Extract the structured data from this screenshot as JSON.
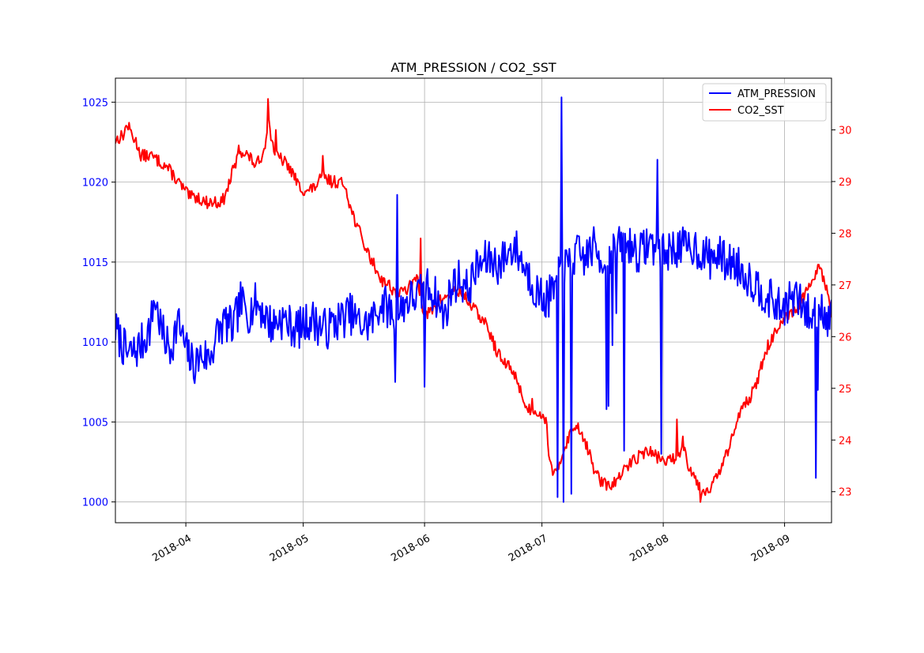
{
  "chart_data": {
    "type": "line",
    "title": "ATM_PRESSION / CO2_SST",
    "xlabel": "",
    "x_ticks": [
      "2018-04",
      "2018-05",
      "2018-06",
      "2018-07",
      "2018-08",
      "2018-09"
    ],
    "x_tick_days": [
      18,
      48,
      79,
      109,
      140,
      171
    ],
    "x_range_days": [
      0,
      183
    ],
    "x_start_date": "2018-03-14",
    "grid": true,
    "legend_position": "upper right",
    "axes": {
      "left": {
        "ylim": [
          998.7,
          1026.5
        ],
        "ticks": [
          1000,
          1005,
          1010,
          1015,
          1020,
          1025
        ],
        "color": "#0000ff"
      },
      "right": {
        "ylim": [
          22.4,
          31.0
        ],
        "ticks": [
          23,
          24,
          25,
          26,
          27,
          28,
          29,
          30
        ],
        "color": "#ff0000"
      }
    },
    "series": [
      {
        "name": "ATM_PRESSION",
        "axis": "left",
        "color": "#0000ff",
        "anchors": [
          [
            0,
            1010.8
          ],
          [
            3,
            1009.2
          ],
          [
            5,
            1009.4
          ],
          [
            7,
            1010.0
          ],
          [
            9,
            1011.0
          ],
          [
            10,
            1012.8
          ],
          [
            12,
            1010.5
          ],
          [
            14,
            1009.5
          ],
          [
            16,
            1011.3
          ],
          [
            18,
            1009.5
          ],
          [
            20,
            1008.5
          ],
          [
            22,
            1009.2
          ],
          [
            24,
            1009.0
          ],
          [
            26,
            1010.5
          ],
          [
            28,
            1011.3
          ],
          [
            30,
            1010.8
          ],
          [
            32,
            1012.5
          ],
          [
            34,
            1011.8
          ],
          [
            36,
            1012.5
          ],
          [
            38,
            1011.8
          ],
          [
            40,
            1011.0
          ],
          [
            42,
            1011.5
          ],
          [
            44,
            1011.2
          ],
          [
            46,
            1010.8
          ],
          [
            48,
            1011.0
          ],
          [
            50,
            1011.5
          ],
          [
            52,
            1011.0
          ],
          [
            54,
            1010.8
          ],
          [
            56,
            1011.2
          ],
          [
            58,
            1011.5
          ],
          [
            60,
            1011.8
          ],
          [
            62,
            1011.2
          ],
          [
            64,
            1011.0
          ],
          [
            66,
            1011.5
          ],
          [
            68,
            1012.5
          ],
          [
            70,
            1012.0
          ],
          [
            72,
            1011.5
          ],
          [
            74,
            1012.5
          ],
          [
            76,
            1012.8
          ],
          [
            78,
            1013.0
          ],
          [
            80,
            1013.5
          ],
          [
            82,
            1012.8
          ],
          [
            84,
            1011.5
          ],
          [
            86,
            1013.5
          ],
          [
            88,
            1014.0
          ],
          [
            90,
            1013.2
          ],
          [
            92,
            1014.5
          ],
          [
            94,
            1015.0
          ],
          [
            96,
            1015.2
          ],
          [
            98,
            1014.8
          ],
          [
            100,
            1015.5
          ],
          [
            102,
            1016.0
          ],
          [
            104,
            1015.0
          ],
          [
            106,
            1014.0
          ],
          [
            108,
            1013.0
          ],
          [
            110,
            1012.6
          ],
          [
            112,
            1013.2
          ],
          [
            114,
            1014.5
          ],
          [
            116,
            1014.8
          ],
          [
            118,
            1015.5
          ],
          [
            120,
            1015.2
          ],
          [
            122,
            1016.0
          ],
          [
            124,
            1015.2
          ],
          [
            126,
            1015.5
          ],
          [
            128,
            1015.8
          ],
          [
            130,
            1016.2
          ],
          [
            132,
            1016.0
          ],
          [
            134,
            1015.5
          ],
          [
            136,
            1016.2
          ],
          [
            138,
            1016.0
          ],
          [
            140,
            1015.5
          ],
          [
            142,
            1015.8
          ],
          [
            144,
            1016.0
          ],
          [
            146,
            1015.8
          ],
          [
            148,
            1016.0
          ],
          [
            150,
            1015.5
          ],
          [
            152,
            1015.2
          ],
          [
            154,
            1015.5
          ],
          [
            156,
            1015.0
          ],
          [
            158,
            1015.0
          ],
          [
            160,
            1014.5
          ],
          [
            162,
            1014.0
          ],
          [
            164,
            1013.5
          ],
          [
            166,
            1013.0
          ],
          [
            168,
            1012.5
          ],
          [
            170,
            1012.0
          ],
          [
            172,
            1012.5
          ],
          [
            174,
            1012.8
          ],
          [
            176,
            1012.0
          ],
          [
            178,
            1011.5
          ],
          [
            180,
            1012.5
          ],
          [
            182,
            1011.5
          ]
        ],
        "spikes": [
          [
            71.5,
            1007.5
          ],
          [
            72,
            1019.2
          ],
          [
            79,
            1007.2
          ],
          [
            113,
            1000.3
          ],
          [
            114,
            1025.3
          ],
          [
            114.5,
            1000.0
          ],
          [
            116.5,
            1000.5
          ],
          [
            125.5,
            1005.8
          ],
          [
            126,
            1006.0
          ],
          [
            127,
            1009.8
          ],
          [
            128,
            1011.8
          ],
          [
            130,
            1003.2
          ],
          [
            138.5,
            1021.4
          ],
          [
            139.5,
            1003.0
          ],
          [
            179,
            1001.5
          ],
          [
            179.5,
            1007.0
          ]
        ]
      },
      {
        "name": "CO2_SST",
        "axis": "right",
        "color": "#ff0000",
        "anchors": [
          [
            0,
            29.8
          ],
          [
            2,
            29.9
          ],
          [
            3,
            30.1
          ],
          [
            5,
            29.8
          ],
          [
            7,
            29.5
          ],
          [
            9,
            29.5
          ],
          [
            11,
            29.4
          ],
          [
            13,
            29.3
          ],
          [
            15,
            29.1
          ],
          [
            17,
            28.9
          ],
          [
            19,
            28.7
          ],
          [
            21,
            28.7
          ],
          [
            23,
            28.6
          ],
          [
            25,
            28.6
          ],
          [
            27,
            28.6
          ],
          [
            28,
            28.7
          ],
          [
            30,
            29.2
          ],
          [
            32,
            29.6
          ],
          [
            34,
            29.5
          ],
          [
            36,
            29.3
          ],
          [
            38,
            29.6
          ],
          [
            39,
            30.2
          ],
          [
            40,
            29.8
          ],
          [
            41,
            29.5
          ],
          [
            43,
            29.4
          ],
          [
            45,
            29.2
          ],
          [
            47,
            28.9
          ],
          [
            49,
            28.8
          ],
          [
            51,
            28.9
          ],
          [
            53,
            29.1
          ],
          [
            55,
            29.0
          ],
          [
            57,
            29.0
          ],
          [
            59,
            28.9
          ],
          [
            60,
            28.5
          ],
          [
            62,
            28.1
          ],
          [
            64,
            27.7
          ],
          [
            66,
            27.4
          ],
          [
            68,
            27.1
          ],
          [
            70,
            27.0
          ],
          [
            72,
            26.8
          ],
          [
            74,
            26.9
          ],
          [
            76,
            27.0
          ],
          [
            77,
            27.2
          ],
          [
            79,
            26.4
          ],
          [
            81,
            26.5
          ],
          [
            83,
            26.7
          ],
          [
            85,
            26.8
          ],
          [
            87,
            26.9
          ],
          [
            89,
            26.8
          ],
          [
            91,
            26.6
          ],
          [
            93,
            26.4
          ],
          [
            95,
            26.2
          ],
          [
            97,
            25.8
          ],
          [
            99,
            25.5
          ],
          [
            101,
            25.4
          ],
          [
            103,
            25.1
          ],
          [
            105,
            24.6
          ],
          [
            107,
            24.6
          ],
          [
            109,
            24.5
          ],
          [
            110,
            24.4
          ],
          [
            111,
            23.6
          ],
          [
            112,
            23.3
          ],
          [
            113,
            23.4
          ],
          [
            114,
            23.7
          ],
          [
            116,
            24.1
          ],
          [
            118,
            24.3
          ],
          [
            120,
            24.0
          ],
          [
            122,
            23.5
          ],
          [
            124,
            23.2
          ],
          [
            126,
            23.1
          ],
          [
            128,
            23.2
          ],
          [
            130,
            23.4
          ],
          [
            132,
            23.6
          ],
          [
            134,
            23.7
          ],
          [
            136,
            23.8
          ],
          [
            138,
            23.7
          ],
          [
            140,
            23.6
          ],
          [
            142,
            23.6
          ],
          [
            144,
            23.7
          ],
          [
            145,
            24.0
          ],
          [
            146,
            23.6
          ],
          [
            148,
            23.3
          ],
          [
            150,
            23.0
          ],
          [
            152,
            23.1
          ],
          [
            154,
            23.3
          ],
          [
            156,
            23.7
          ],
          [
            158,
            24.1
          ],
          [
            160,
            24.7
          ],
          [
            162,
            24.8
          ],
          [
            164,
            25.1
          ],
          [
            166,
            25.7
          ],
          [
            168,
            26.0
          ],
          [
            170,
            26.2
          ],
          [
            172,
            26.4
          ],
          [
            174,
            26.5
          ],
          [
            176,
            26.8
          ],
          [
            178,
            27.0
          ],
          [
            180,
            27.4
          ],
          [
            182,
            26.8
          ],
          [
            183,
            26.4
          ]
        ],
        "spikes": [
          [
            6.5,
            29.4
          ],
          [
            31.5,
            29.7
          ],
          [
            39,
            30.6
          ],
          [
            41,
            30.0
          ],
          [
            53,
            29.5
          ],
          [
            78,
            27.9
          ],
          [
            106.5,
            24.8
          ],
          [
            111.5,
            23.5
          ],
          [
            139.5,
            23.6
          ],
          [
            143.5,
            24.4
          ],
          [
            149.5,
            22.8
          ]
        ]
      }
    ]
  }
}
